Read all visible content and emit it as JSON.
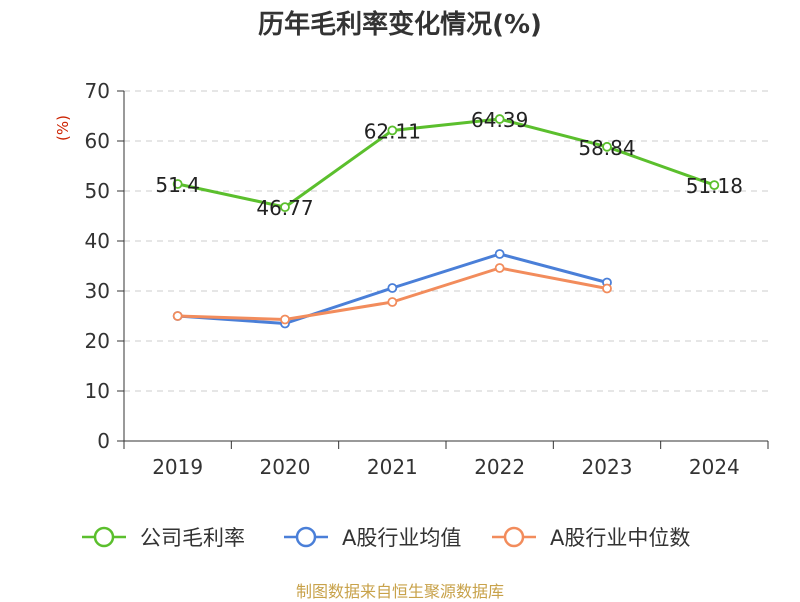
{
  "title": "历年毛利率变化情况(%)",
  "source": "制图数据来自恒生聚源数据库",
  "chart_data": {
    "type": "line",
    "title": "历年毛利率变化情况(%)",
    "ylabel": "(%)",
    "ylim": [
      0,
      70
    ],
    "yticks": [
      0,
      10,
      20,
      30,
      40,
      50,
      60,
      70
    ],
    "categories": [
      "2019",
      "2020",
      "2021",
      "2022",
      "2023",
      "2024"
    ],
    "grid": true,
    "legend_position": "bottom",
    "series": [
      {
        "name": "公司毛利率",
        "color": "#5bbf2d",
        "values": [
          51.4,
          46.77,
          62.11,
          64.39,
          58.84,
          51.18
        ],
        "labels": [
          "51.4",
          "46.77",
          "62.11",
          "64.39",
          "58.84",
          "51.18"
        ]
      },
      {
        "name": "A股行业均值",
        "color": "#4a7fd8",
        "values": [
          25.0,
          23.5,
          30.6,
          37.4,
          31.7,
          null
        ]
      },
      {
        "name": "A股行业中位数",
        "color": "#f28c5c",
        "values": [
          25.0,
          24.3,
          27.8,
          34.6,
          30.5,
          null
        ]
      }
    ]
  }
}
